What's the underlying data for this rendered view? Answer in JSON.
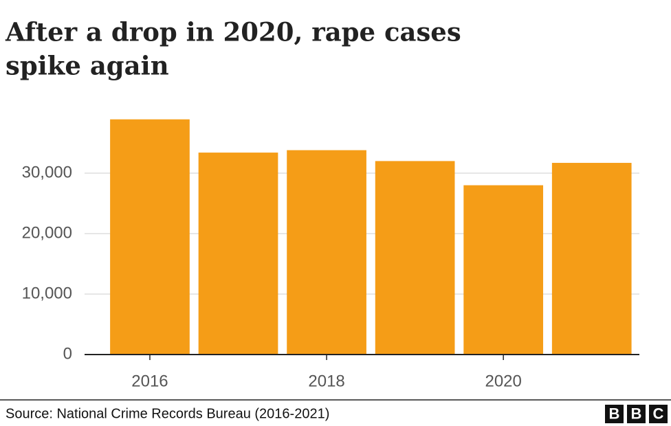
{
  "chart_data": {
    "type": "bar",
    "title_lines": [
      "After a drop in 2020, rape cases",
      "spike again"
    ],
    "categories": [
      "2016",
      null,
      "2018",
      null,
      "2020",
      null
    ],
    "values": [
      38900,
      33400,
      33800,
      32000,
      28000,
      31700
    ],
    "color": "#f59d17",
    "ylim": [
      0,
      40000
    ],
    "yticks": [
      0,
      {
        "value": 10000,
        "label": "10,000"
      },
      {
        "value": 20000,
        "label": "20,000"
      },
      {
        "value": 30000,
        "label": "30,000"
      }
    ],
    "grid": true,
    "source": "Source: National Crime Records Bureau (2016-2021)",
    "logo_letters": [
      "B",
      "B",
      "C"
    ]
  }
}
